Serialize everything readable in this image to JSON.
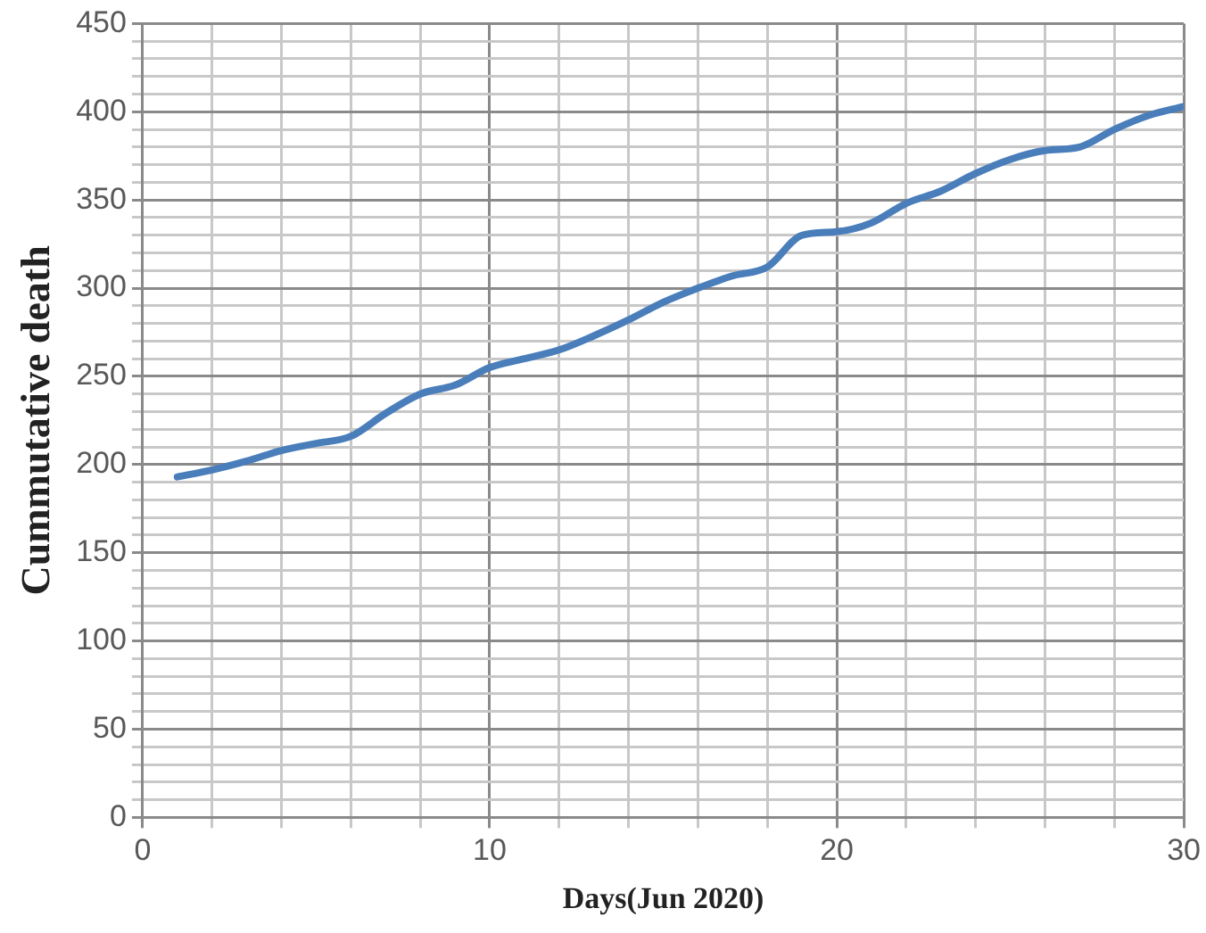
{
  "chart_data": {
    "type": "line",
    "xlabel": "Days(Jun 2020)",
    "ylabel": "Cummutative death",
    "x": [
      1,
      2,
      3,
      4,
      5,
      6,
      7,
      8,
      9,
      10,
      11,
      12,
      13,
      14,
      15,
      16,
      17,
      18,
      19,
      20,
      21,
      22,
      23,
      24,
      25,
      26,
      27,
      28,
      29,
      30
    ],
    "series": [
      {
        "color": "#4a7ebb",
        "values": [
          193,
          197,
          202,
          208,
          212,
          216,
          229,
          240,
          245,
          255,
          260,
          265,
          273,
          282,
          292,
          300,
          307,
          312,
          330,
          332,
          337,
          348,
          355,
          365,
          373,
          378,
          380,
          390,
          398,
          403
        ]
      }
    ],
    "xlim": [
      0,
      30
    ],
    "xticks": [
      0,
      {
        "value": 2,
        "label": null
      },
      {
        "value": 4,
        "label": null
      },
      {
        "value": 6,
        "label": null
      },
      {
        "value": 8,
        "label": null
      },
      10,
      {
        "value": 12,
        "label": null
      },
      {
        "value": 14,
        "label": null
      },
      {
        "value": 16,
        "label": null
      },
      {
        "value": 18,
        "label": null
      },
      20,
      {
        "value": 22,
        "label": null
      },
      {
        "value": 24,
        "label": null
      },
      {
        "value": 26,
        "label": null
      },
      {
        "value": 28,
        "label": null
      },
      30
    ],
    "ylim": [
      0,
      450
    ],
    "yticks": [
      0,
      {
        "value": 10,
        "label": null
      },
      {
        "value": 20,
        "label": null
      },
      {
        "value": 30,
        "label": null
      },
      {
        "value": 40,
        "label": null
      },
      50,
      {
        "value": 60,
        "label": null
      },
      {
        "value": 70,
        "label": null
      },
      {
        "value": 80,
        "label": null
      },
      {
        "value": 90,
        "label": null
      },
      100,
      {
        "value": 110,
        "label": null
      },
      {
        "value": 120,
        "label": null
      },
      {
        "value": 130,
        "label": null
      },
      {
        "value": 140,
        "label": null
      },
      150,
      {
        "value": 160,
        "label": null
      },
      {
        "value": 170,
        "label": null
      },
      {
        "value": 180,
        "label": null
      },
      {
        "value": 190,
        "label": null
      },
      200,
      {
        "value": 210,
        "label": null
      },
      {
        "value": 220,
        "label": null
      },
      {
        "value": 230,
        "label": null
      },
      {
        "value": 240,
        "label": null
      },
      250,
      {
        "value": 260,
        "label": null
      },
      {
        "value": 270,
        "label": null
      },
      {
        "value": 280,
        "label": null
      },
      {
        "value": 290,
        "label": null
      },
      300,
      {
        "value": 310,
        "label": null
      },
      {
        "value": 320,
        "label": null
      },
      {
        "value": 330,
        "label": null
      },
      {
        "value": 340,
        "label": null
      },
      350,
      {
        "value": 360,
        "label": null
      },
      {
        "value": 370,
        "label": null
      },
      {
        "value": 380,
        "label": null
      },
      {
        "value": 390,
        "label": null
      },
      400,
      {
        "value": 410,
        "label": null
      },
      {
        "value": 420,
        "label": null
      },
      {
        "value": 430,
        "label": null
      },
      {
        "value": 440,
        "label": null
      },
      450
    ],
    "grid": true,
    "legend": false,
    "marker": "none",
    "line_style": "solid"
  }
}
